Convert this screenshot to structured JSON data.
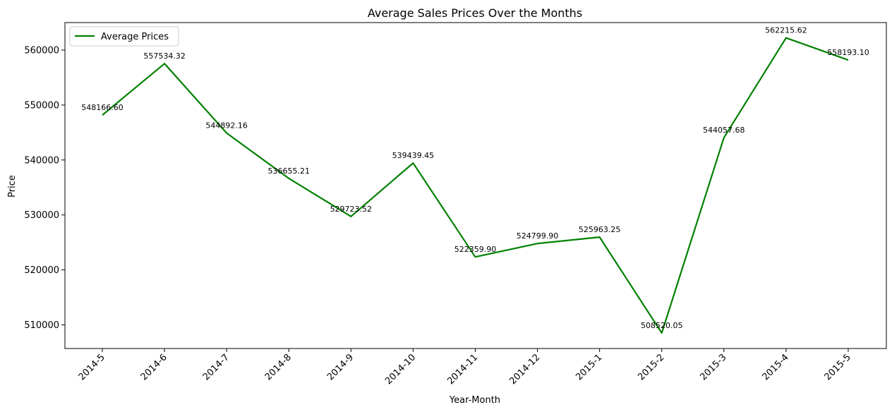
{
  "chart_data": {
    "type": "line",
    "title": "Average Sales Prices Over the Months",
    "xlabel": "Year-Month",
    "ylabel": "Price",
    "categories": [
      "2014-5",
      "2014-6",
      "2014-7",
      "2014-8",
      "2014-9",
      "2014-10",
      "2014-11",
      "2014-12",
      "2015-1",
      "2015-2",
      "2015-3",
      "2015-4",
      "2015-5"
    ],
    "series": [
      {
        "name": "Average Prices",
        "color": "#008000",
        "values": [
          548166.6,
          557534.32,
          544892.16,
          536655.21,
          529723.52,
          539439.45,
          522359.9,
          524799.9,
          525963.25,
          508520.05,
          544057.68,
          562215.62,
          558193.1
        ],
        "labels": [
          "548166.60",
          "557534.32",
          "544892.16",
          "536655.21",
          "529723.52",
          "539439.45",
          "522359.90",
          "524799.90",
          "525963.25",
          "508520.05",
          "544057.68",
          "562215.62",
          "558193.10"
        ]
      }
    ],
    "yticks": [
      510000,
      520000,
      530000,
      540000,
      550000,
      560000
    ],
    "ylim": [
      505700,
      565000
    ],
    "grid": false,
    "legend_position": "top-left"
  }
}
